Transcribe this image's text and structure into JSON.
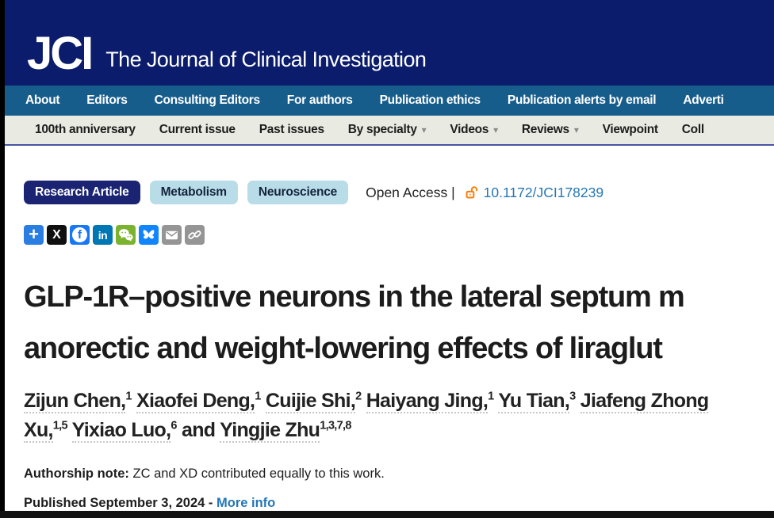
{
  "colors": {
    "masthead_navy": "#0a1c6b",
    "primary_nav_blue": "#175d8c",
    "secondary_nav_bg": "#e9ebe3",
    "badge_navy": "#1a2472",
    "badge_light_blue": "#b8dde8",
    "link_blue": "#2577b5",
    "open_access_orange": "#f68212"
  },
  "header": {
    "logo_text": "JCI",
    "journal_name": "The Journal of Clinical Investigation"
  },
  "primary_nav": [
    "About",
    "Editors",
    "Consulting Editors",
    "For authors",
    "Publication ethics",
    "Publication alerts by email",
    "Adverti"
  ],
  "secondary_nav": [
    {
      "label": "100th anniversary",
      "dropdown": false
    },
    {
      "label": "Current issue",
      "dropdown": false
    },
    {
      "label": "Past issues",
      "dropdown": false
    },
    {
      "label": "By specialty",
      "dropdown": true
    },
    {
      "label": "Videos",
      "dropdown": true
    },
    {
      "label": "Reviews",
      "dropdown": true
    },
    {
      "label": "Viewpoint",
      "dropdown": false
    },
    {
      "label": "Coll",
      "dropdown": false
    }
  ],
  "article": {
    "type_badge": "Research Article",
    "category_badges": [
      "Metabolism",
      "Neuroscience"
    ],
    "access": {
      "label": "Open Access |",
      "doi": "10.1172/JCI178239"
    },
    "share_icons": [
      {
        "icon": "share-plus-icon",
        "bg": "#2a7de1"
      },
      {
        "icon": "x-icon",
        "bg": "#101010"
      },
      {
        "icon": "facebook-icon",
        "bg": "#1877f2"
      },
      {
        "icon": "linkedin-icon",
        "bg": "#0077b5"
      },
      {
        "icon": "wechat-icon",
        "bg": "#7bb32e"
      },
      {
        "icon": "bluesky-icon",
        "bg": "#1185fe"
      },
      {
        "icon": "email-icon",
        "bg": "#959595"
      },
      {
        "icon": "copy-link-icon",
        "bg": "#959595"
      }
    ],
    "title_lines": [
      "GLP-1R–positive neurons in the lateral septum m",
      "anorectic and weight-lowering effects of liraglut"
    ],
    "authors": {
      "line1": [
        {
          "pre": "",
          "name": "Zijun Chen,",
          "sup": "1"
        },
        {
          "pre": " ",
          "name": "Xiaofei Deng,",
          "sup": "1"
        },
        {
          "pre": " ",
          "name": "Cuijie Shi,",
          "sup": "2"
        },
        {
          "pre": " ",
          "name": "Haiyang Jing,",
          "sup": "1"
        },
        {
          "pre": " ",
          "name": "Yu Tian,",
          "sup": "3"
        },
        {
          "pre": " ",
          "name": "Jiafeng Zhong",
          "sup": ""
        }
      ],
      "line2": [
        {
          "pre": "",
          "name": "Xu,",
          "sup": "1,5"
        },
        {
          "pre": " ",
          "name": "Yixiao Luo,",
          "sup": "6"
        },
        {
          "pre": " and ",
          "name": "Yingjie Zhu",
          "sup": "1,3,7,8"
        }
      ]
    },
    "authorship_note": {
      "label": "Authorship note:",
      "text": " ZC and XD contributed equally to this work."
    },
    "published": {
      "text": "Published September 3, 2024 - ",
      "link": "More info"
    }
  }
}
